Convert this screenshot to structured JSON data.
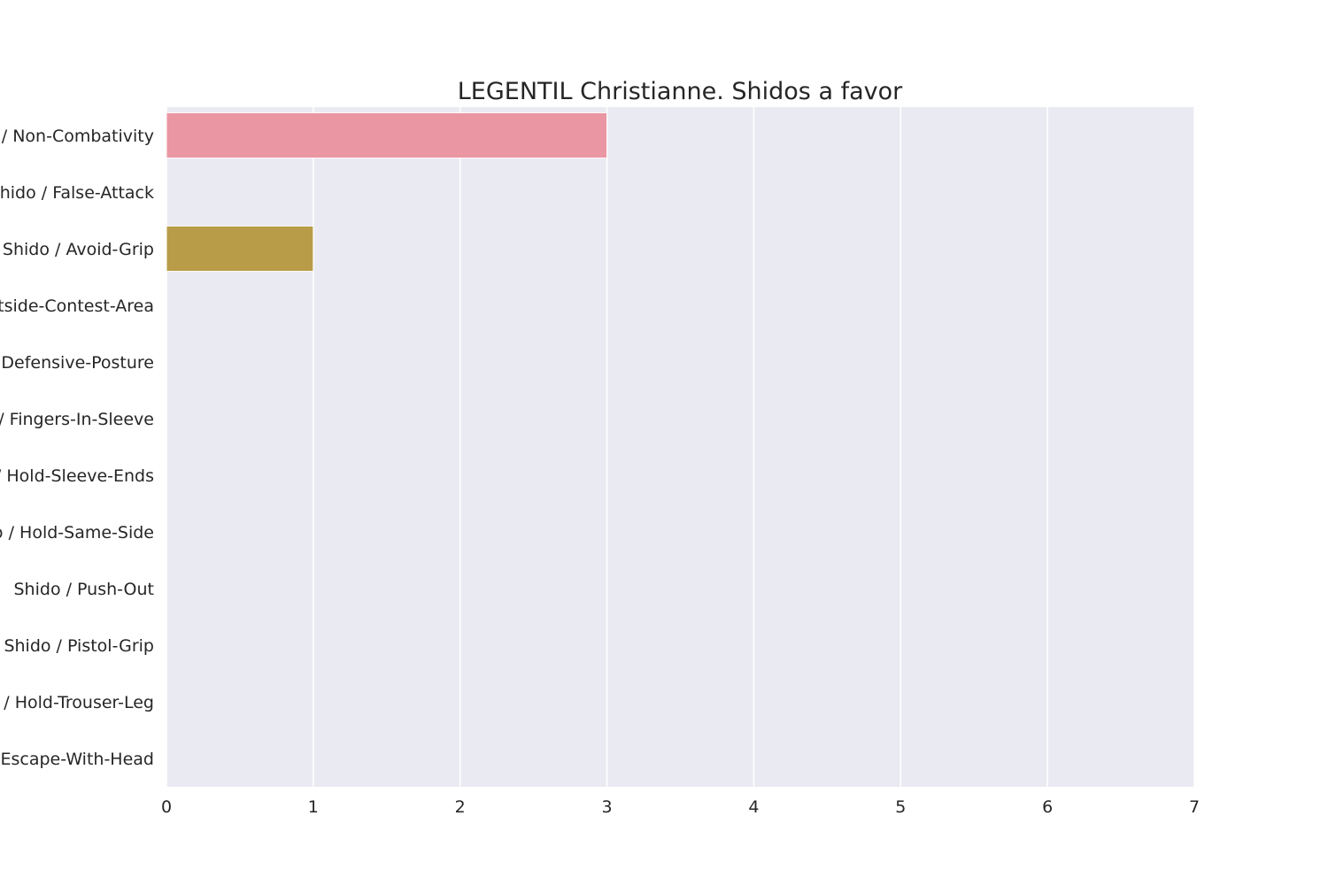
{
  "chart_data": {
    "type": "bar",
    "orientation": "horizontal",
    "title": "LEGENTIL Christianne. Shidos a favor",
    "xlabel": "",
    "ylabel": "",
    "xlim": [
      0,
      7
    ],
    "xticks": [
      "0",
      "1",
      "2",
      "3",
      "4",
      "5",
      "6",
      "7"
    ],
    "grid": true,
    "categories": [
      "Shido / Non-Combativity",
      "Shido / False-Attack",
      "Shido / Avoid-Grip",
      "Shido / Outside-Contest-Area",
      "Shido / Defensive-Posture",
      "Shido / Fingers-In-Sleeve",
      "Shido / Hold-Sleeve-Ends",
      "Shido / Hold-Same-Side",
      "Shido / Push-Out",
      "Shido / Pistol-Grip",
      "Shido / Hold-Trouser-Leg",
      "Shido / Escape-With-Head"
    ],
    "values": [
      3,
      0,
      1,
      0,
      0,
      0,
      0,
      0,
      0,
      0,
      0,
      0
    ],
    "colors": [
      "#ea96a3",
      "#d8a070",
      "#b89c48",
      "#a0a442",
      "#78ad48",
      "#4eb17a",
      "#50b0a0",
      "#52abb8",
      "#5aa6d4",
      "#9a9ee8",
      "#d490e6",
      "#e890c8"
    ],
    "background": "#eaeaf2",
    "gridline_color": "#ffffff"
  }
}
